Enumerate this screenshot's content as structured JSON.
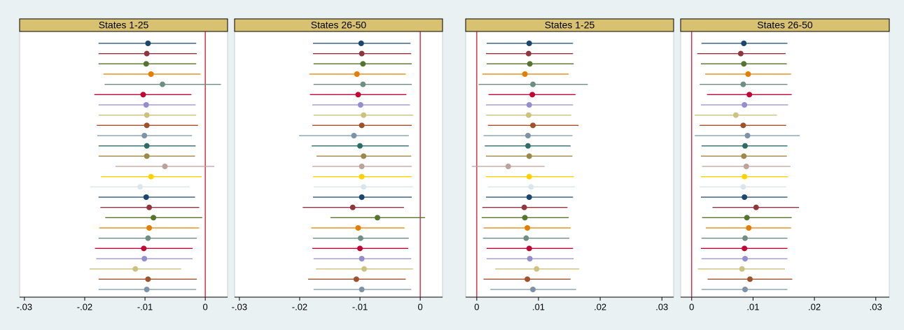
{
  "chart_data": [
    {
      "type": "forest",
      "title": "States 1-25",
      "xlim": [
        -0.0308,
        0.0037
      ],
      "xticks": [
        {
          "value": -0.03,
          "label": "-.03"
        },
        {
          "value": -0.02,
          "label": "-.02"
        },
        {
          "value": -0.01,
          "label": "-.01"
        },
        0
      ],
      "xline": 0,
      "xline_color": "#d0021b",
      "colors": [
        "#1a476f",
        "#90353b",
        "#55752f",
        "#e37e00",
        "#6e8e84",
        "#c10534",
        "#938dd2",
        "#cac27e",
        "#a0522d",
        "#7b92a8",
        "#2d6d66",
        "#9c8847",
        "#bfa19c",
        "#ffd200",
        "#d9e6eb",
        "#1a476f",
        "#90353b",
        "#55752f",
        "#e37e00",
        "#6e8e84",
        "#c10534",
        "#938dd2",
        "#cac27e",
        "#a0522d",
        "#7b92a8"
      ],
      "estimates": [
        -0.0095,
        -0.0097,
        -0.0098,
        -0.009,
        -0.0071,
        -0.0103,
        -0.0098,
        -0.0097,
        -0.0097,
        -0.0101,
        -0.0097,
        -0.0097,
        -0.0067,
        -0.009,
        -0.0108,
        -0.0098,
        -0.0093,
        -0.0086,
        -0.0093,
        -0.0095,
        -0.0102,
        -0.0101,
        -0.0116,
        -0.0095,
        -0.0097
      ],
      "lower": [
        -0.0177,
        -0.0177,
        -0.0177,
        -0.0169,
        -0.0167,
        -0.0184,
        -0.0177,
        -0.0177,
        -0.018,
        -0.0179,
        -0.0177,
        -0.0177,
        -0.0149,
        -0.0173,
        -0.0191,
        -0.0177,
        -0.0174,
        -0.0166,
        -0.0176,
        -0.0177,
        -0.0183,
        -0.0181,
        -0.0192,
        -0.0177,
        -0.0177
      ],
      "upper": [
        -0.0015,
        -0.0014,
        -0.0015,
        -0.0008,
        0.0026,
        -0.0023,
        -0.0016,
        -0.0015,
        -0.0012,
        -0.0022,
        -0.0016,
        -0.0017,
        0.0015,
        -0.0006,
        -0.0026,
        -0.0017,
        -0.001,
        -0.0005,
        -0.001,
        -0.0014,
        -0.0021,
        -0.0021,
        -0.004,
        -0.0014,
        -0.0015
      ]
    },
    {
      "type": "forest",
      "title": "States 26-50",
      "xlim": [
        -0.0308,
        0.0037
      ],
      "xticks": [
        {
          "value": -0.03,
          "label": "-.03"
        },
        {
          "value": -0.02,
          "label": "-.02"
        },
        {
          "value": -0.01,
          "label": "-.01"
        },
        0
      ],
      "xline": 0,
      "xline_color": "#d0021b",
      "colors": [
        "#1a476f",
        "#90353b",
        "#55752f",
        "#e37e00",
        "#6e8e84",
        "#c10534",
        "#938dd2",
        "#cac27e",
        "#a0522d",
        "#7b92a8",
        "#2d6d66",
        "#9c8847",
        "#bfa19c",
        "#ffd200",
        "#d9e6eb",
        "#1a476f",
        "#90353b",
        "#55752f",
        "#e37e00",
        "#6e8e84",
        "#c10534",
        "#938dd2",
        "#cac27e",
        "#a0522d",
        "#7b92a8"
      ],
      "estimates": [
        -0.0098,
        -0.0097,
        -0.0095,
        -0.0105,
        -0.0095,
        -0.0103,
        -0.0099,
        -0.0094,
        -0.0097,
        -0.011,
        -0.01,
        -0.0094,
        -0.0097,
        -0.0097,
        -0.0094,
        -0.0097,
        -0.0112,
        -0.0071,
        -0.0103,
        -0.0099,
        -0.01,
        -0.0097,
        -0.0093,
        -0.0106,
        -0.0097
      ],
      "lower": [
        -0.0178,
        -0.0178,
        -0.0177,
        -0.0184,
        -0.0177,
        -0.0183,
        -0.0179,
        -0.0177,
        -0.0179,
        -0.0201,
        -0.018,
        -0.0172,
        -0.0179,
        -0.0178,
        -0.0177,
        -0.0178,
        -0.0195,
        -0.0149,
        -0.0181,
        -0.0178,
        -0.0179,
        -0.0177,
        -0.0173,
        -0.0186,
        -0.0177
      ],
      "upper": [
        -0.0016,
        -0.0015,
        -0.0014,
        -0.0024,
        -0.0014,
        -0.0023,
        -0.0017,
        -0.0012,
        -0.0014,
        -0.0019,
        -0.0019,
        -0.0015,
        -0.0014,
        -0.0014,
        -0.0012,
        -0.0014,
        -0.0027,
        0.0008,
        -0.0026,
        -0.0019,
        -0.002,
        -0.0015,
        -0.0012,
        -0.0024,
        -0.0015
      ]
    },
    {
      "type": "forest",
      "title": "States 1-25",
      "xlim": [
        -0.0018,
        0.0319
      ],
      "xticks": [
        0,
        {
          "value": 0.01,
          "label": ".01"
        },
        {
          "value": 0.02,
          "label": ".02"
        },
        {
          "value": 0.03,
          "label": ".03"
        }
      ],
      "xline": 0,
      "xline_color": "#d0021b",
      "colors": [
        "#1a476f",
        "#90353b",
        "#55752f",
        "#e37e00",
        "#6e8e84",
        "#c10534",
        "#938dd2",
        "#cac27e",
        "#a0522d",
        "#7b92a8",
        "#2d6d66",
        "#9c8847",
        "#bfa19c",
        "#ffd200",
        "#d9e6eb",
        "#1a476f",
        "#90353b",
        "#55752f",
        "#e37e00",
        "#6e8e84",
        "#c10534",
        "#938dd2",
        "#cac27e",
        "#a0522d",
        "#7b92a8"
      ],
      "estimates": [
        0.0085,
        0.0084,
        0.0086,
        0.0078,
        0.0091,
        0.009,
        0.0085,
        0.0084,
        0.0091,
        0.0083,
        0.0083,
        0.0085,
        0.0051,
        0.0085,
        0.0088,
        0.0085,
        0.0077,
        0.0078,
        0.0082,
        0.008,
        0.0085,
        0.0086,
        0.0097,
        0.0082,
        0.0091
      ],
      "lower": [
        0.0016,
        0.0015,
        0.0016,
        0.0009,
        0.0003,
        0.0019,
        0.0015,
        0.0015,
        0.0018,
        0.0011,
        0.0013,
        0.0015,
        -0.0008,
        0.0015,
        0.0018,
        0.0015,
        0.0009,
        0.0008,
        0.0011,
        0.001,
        0.0016,
        0.0016,
        0.003,
        0.0011,
        0.0022
      ],
      "upper": [
        0.0156,
        0.0156,
        0.0157,
        0.0149,
        0.018,
        0.016,
        0.0156,
        0.0153,
        0.0165,
        0.0155,
        0.0152,
        0.0155,
        0.011,
        0.0157,
        0.0159,
        0.0156,
        0.0147,
        0.0149,
        0.0152,
        0.015,
        0.0156,
        0.0157,
        0.0166,
        0.0152,
        0.0161
      ]
    },
    {
      "type": "forest",
      "title": "States 26-50",
      "xlim": [
        -0.0018,
        0.0322
      ],
      "xticks": [
        0,
        {
          "value": 0.01,
          "label": ".01"
        },
        {
          "value": 0.02,
          "label": ".02"
        },
        {
          "value": 0.03,
          "label": ".03"
        }
      ],
      "xline": 0,
      "xline_color": "#d0021b",
      "colors": [
        "#1a476f",
        "#90353b",
        "#55752f",
        "#e37e00",
        "#6e8e84",
        "#c10534",
        "#938dd2",
        "#cac27e",
        "#a0522d",
        "#7b92a8",
        "#2d6d66",
        "#9c8847",
        "#bfa19c",
        "#ffd200",
        "#d9e6eb",
        "#1a476f",
        "#90353b",
        "#55752f",
        "#e37e00",
        "#6e8e84",
        "#c10534",
        "#938dd2",
        "#cac27e",
        "#a0522d",
        "#7b92a8"
      ],
      "estimates": [
        0.0085,
        0.008,
        0.0085,
        0.0092,
        0.0084,
        0.0094,
        0.0086,
        0.0072,
        0.0084,
        0.0091,
        0.0087,
        0.0085,
        0.0089,
        0.0086,
        0.0084,
        0.0086,
        0.0105,
        0.009,
        0.0093,
        0.0087,
        0.0086,
        0.0087,
        0.0082,
        0.0095,
        0.0087
      ],
      "lower": [
        0.0016,
        0.0009,
        0.0015,
        0.0022,
        0.0013,
        0.0025,
        0.0015,
        0.0005,
        0.0013,
        0.0005,
        0.0016,
        0.0015,
        0.0017,
        0.0015,
        0.0013,
        0.0015,
        0.0034,
        0.0017,
        0.0023,
        0.0016,
        0.0015,
        0.0016,
        0.001,
        0.0026,
        0.0016
      ],
      "upper": [
        0.0156,
        0.0153,
        0.0155,
        0.0162,
        0.0156,
        0.0163,
        0.0157,
        0.0139,
        0.0154,
        0.0176,
        0.0156,
        0.0155,
        0.0161,
        0.0157,
        0.0154,
        0.0156,
        0.0175,
        0.0163,
        0.0162,
        0.0156,
        0.0156,
        0.0156,
        0.0152,
        0.0164,
        0.0156
      ]
    }
  ]
}
